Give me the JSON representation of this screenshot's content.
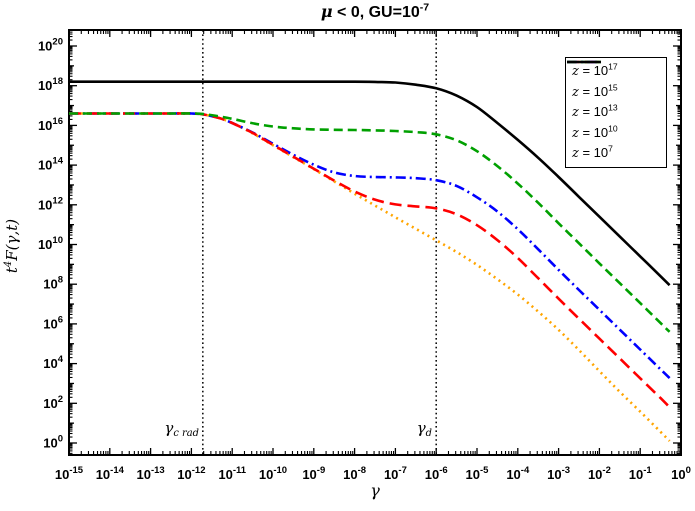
{
  "title": {
    "mu": "μ",
    "rest": " < 0, GU=10",
    "exp": "-7",
    "plain": "μ < 0, GU=10^-7"
  },
  "axes": {
    "x_label": "γ",
    "y_label": {
      "base": "t",
      "sup": "4",
      "rest": "F(γ,t)",
      "plain": "t^4 F(γ,t)"
    }
  },
  "chart_data": {
    "type": "line",
    "xscale": "log",
    "yscale": "log",
    "title": "μ < 0, GU=10^-7",
    "xlabel": "γ",
    "ylabel": "t^4 F(γ,t)",
    "xlim_log10": [
      -15,
      0
    ],
    "ylim_log10": [
      -0.6,
      20.8
    ],
    "x_tick_base": "10",
    "x_tick_exponents": [
      -15,
      -14,
      -13,
      -12,
      -11,
      -10,
      -9,
      -8,
      -7,
      -6,
      -5,
      -4,
      -3,
      -2,
      -1,
      0
    ],
    "y_tick_base": "10",
    "y_tick_exponents": [
      0,
      2,
      4,
      6,
      8,
      10,
      12,
      14,
      16,
      18,
      20
    ],
    "grid": false,
    "legend_position": "top-right",
    "vlines": [
      {
        "label_base": "γ",
        "label_sub": "c rad",
        "log10_x": -11.72,
        "style": "dotted"
      },
      {
        "label_base": "γ",
        "label_sub": "d",
        "log10_x": -6.0,
        "style": "dotted"
      }
    ],
    "series": [
      {
        "name": "z = 10^17",
        "legend_var": "z",
        "legend_eq": " = 10",
        "legend_exp": "17",
        "color": "#ffa500",
        "dash": "dotted",
        "points_log10": [
          [
            -15,
            16.6
          ],
          [
            -13.5,
            16.6
          ],
          [
            -12.5,
            16.6
          ],
          [
            -12,
            16.6
          ],
          [
            -11.7,
            16.55
          ],
          [
            -11.3,
            16.36
          ],
          [
            -11,
            16.12
          ],
          [
            -10.5,
            15.6
          ],
          [
            -10,
            15.0
          ],
          [
            -9.5,
            14.4
          ],
          [
            -9,
            13.8
          ],
          [
            -8.5,
            13.18
          ],
          [
            -8,
            12.56
          ],
          [
            -7.5,
            11.96
          ],
          [
            -7,
            11.37
          ],
          [
            -6.5,
            10.79
          ],
          [
            -6,
            10.21
          ],
          [
            -5.5,
            9.62
          ],
          [
            -5,
            8.97
          ],
          [
            -4.5,
            8.25
          ],
          [
            -4,
            7.48
          ],
          [
            -3.5,
            6.62
          ],
          [
            -3,
            5.7
          ],
          [
            -2.5,
            4.68
          ],
          [
            -2,
            3.62
          ],
          [
            -1.5,
            2.58
          ],
          [
            -1,
            1.58
          ],
          [
            -0.5,
            0.56
          ],
          [
            -0.28,
            0.1
          ]
        ]
      },
      {
        "name": "z = 10^15",
        "legend_var": "z",
        "legend_eq": " = 10",
        "legend_exp": "15",
        "color": "#ff0000",
        "dash": "long-dash",
        "points_log10": [
          [
            -15,
            16.6
          ],
          [
            -13.5,
            16.6
          ],
          [
            -12.5,
            16.6
          ],
          [
            -12,
            16.6
          ],
          [
            -11.7,
            16.55
          ],
          [
            -11.3,
            16.36
          ],
          [
            -11,
            16.12
          ],
          [
            -10.5,
            15.62
          ],
          [
            -10,
            15.02
          ],
          [
            -9.5,
            14.42
          ],
          [
            -9,
            13.82
          ],
          [
            -8.5,
            13.22
          ],
          [
            -8,
            12.67
          ],
          [
            -7.5,
            12.26
          ],
          [
            -7,
            12.02
          ],
          [
            -6.5,
            11.92
          ],
          [
            -6,
            11.82
          ],
          [
            -5.5,
            11.52
          ],
          [
            -5,
            10.97
          ],
          [
            -4.5,
            10.22
          ],
          [
            -4,
            9.32
          ],
          [
            -3.5,
            8.3
          ],
          [
            -3,
            7.27
          ],
          [
            -2.5,
            6.26
          ],
          [
            -2,
            5.26
          ],
          [
            -1.5,
            4.26
          ],
          [
            -1,
            3.26
          ],
          [
            -0.5,
            2.26
          ],
          [
            -0.28,
            1.8
          ]
        ]
      },
      {
        "name": "z = 10^13",
        "legend_var": "z",
        "legend_eq": " = 10",
        "legend_exp": "13",
        "color": "#0000ff",
        "dash": "dash-dot",
        "points_log10": [
          [
            -15,
            16.6
          ],
          [
            -13.5,
            16.6
          ],
          [
            -12.5,
            16.6
          ],
          [
            -12,
            16.6
          ],
          [
            -11.7,
            16.55
          ],
          [
            -11.3,
            16.36
          ],
          [
            -11,
            16.12
          ],
          [
            -10.5,
            15.64
          ],
          [
            -10,
            15.08
          ],
          [
            -9.5,
            14.52
          ],
          [
            -9,
            14.02
          ],
          [
            -8.5,
            13.63
          ],
          [
            -8,
            13.45
          ],
          [
            -7.5,
            13.4
          ],
          [
            -7,
            13.38
          ],
          [
            -6.5,
            13.34
          ],
          [
            -6,
            13.24
          ],
          [
            -5.5,
            12.95
          ],
          [
            -5,
            12.38
          ],
          [
            -4.5,
            11.66
          ],
          [
            -4,
            10.77
          ],
          [
            -3.5,
            9.76
          ],
          [
            -3,
            8.72
          ],
          [
            -2.5,
            7.71
          ],
          [
            -2,
            6.71
          ],
          [
            -1.5,
            5.71
          ],
          [
            -1,
            4.71
          ],
          [
            -0.5,
            3.71
          ],
          [
            -0.28,
            3.27
          ]
        ]
      },
      {
        "name": "z = 10^10",
        "legend_var": "z",
        "legend_eq": " = 10",
        "legend_exp": "10",
        "color": "#00a000",
        "dash": "dash",
        "points_log10": [
          [
            -15,
            16.6
          ],
          [
            -13.5,
            16.6
          ],
          [
            -12.5,
            16.6
          ],
          [
            -12,
            16.6
          ],
          [
            -11.7,
            16.57
          ],
          [
            -11.3,
            16.45
          ],
          [
            -11,
            16.33
          ],
          [
            -10.6,
            16.15
          ],
          [
            -10.2,
            16.0
          ],
          [
            -9.8,
            15.9
          ],
          [
            -9.4,
            15.84
          ],
          [
            -9,
            15.8
          ],
          [
            -8.5,
            15.78
          ],
          [
            -8,
            15.77
          ],
          [
            -7.5,
            15.75
          ],
          [
            -7,
            15.72
          ],
          [
            -6.5,
            15.66
          ],
          [
            -6,
            15.55
          ],
          [
            -5.5,
            15.25
          ],
          [
            -5,
            14.7
          ],
          [
            -4.5,
            13.95
          ],
          [
            -4,
            13.07
          ],
          [
            -3.5,
            12.1
          ],
          [
            -3,
            11.07
          ],
          [
            -2.5,
            10.06
          ],
          [
            -2,
            9.05
          ],
          [
            -1.5,
            8.05
          ],
          [
            -1,
            7.05
          ],
          [
            -0.5,
            6.04
          ],
          [
            -0.28,
            5.6
          ]
        ]
      },
      {
        "name": "z = 10^7",
        "legend_var": "z",
        "legend_eq": " = 10",
        "legend_exp": "7",
        "color": "#000000",
        "dash": "solid",
        "points_log10": [
          [
            -15,
            18.2
          ],
          [
            -13,
            18.2
          ],
          [
            -11,
            18.2
          ],
          [
            -10,
            18.2
          ],
          [
            -9,
            18.2
          ],
          [
            -8,
            18.2
          ],
          [
            -7.5,
            18.19
          ],
          [
            -7,
            18.16
          ],
          [
            -6.5,
            18.05
          ],
          [
            -6,
            17.87
          ],
          [
            -5.5,
            17.5
          ],
          [
            -5,
            16.92
          ],
          [
            -4.5,
            16.12
          ],
          [
            -4,
            15.27
          ],
          [
            -3.5,
            14.37
          ],
          [
            -3,
            13.4
          ],
          [
            -2.5,
            12.4
          ],
          [
            -2,
            11.4
          ],
          [
            -1.5,
            10.4
          ],
          [
            -1,
            9.4
          ],
          [
            -0.5,
            8.4
          ],
          [
            -0.28,
            7.95
          ]
        ]
      }
    ]
  }
}
